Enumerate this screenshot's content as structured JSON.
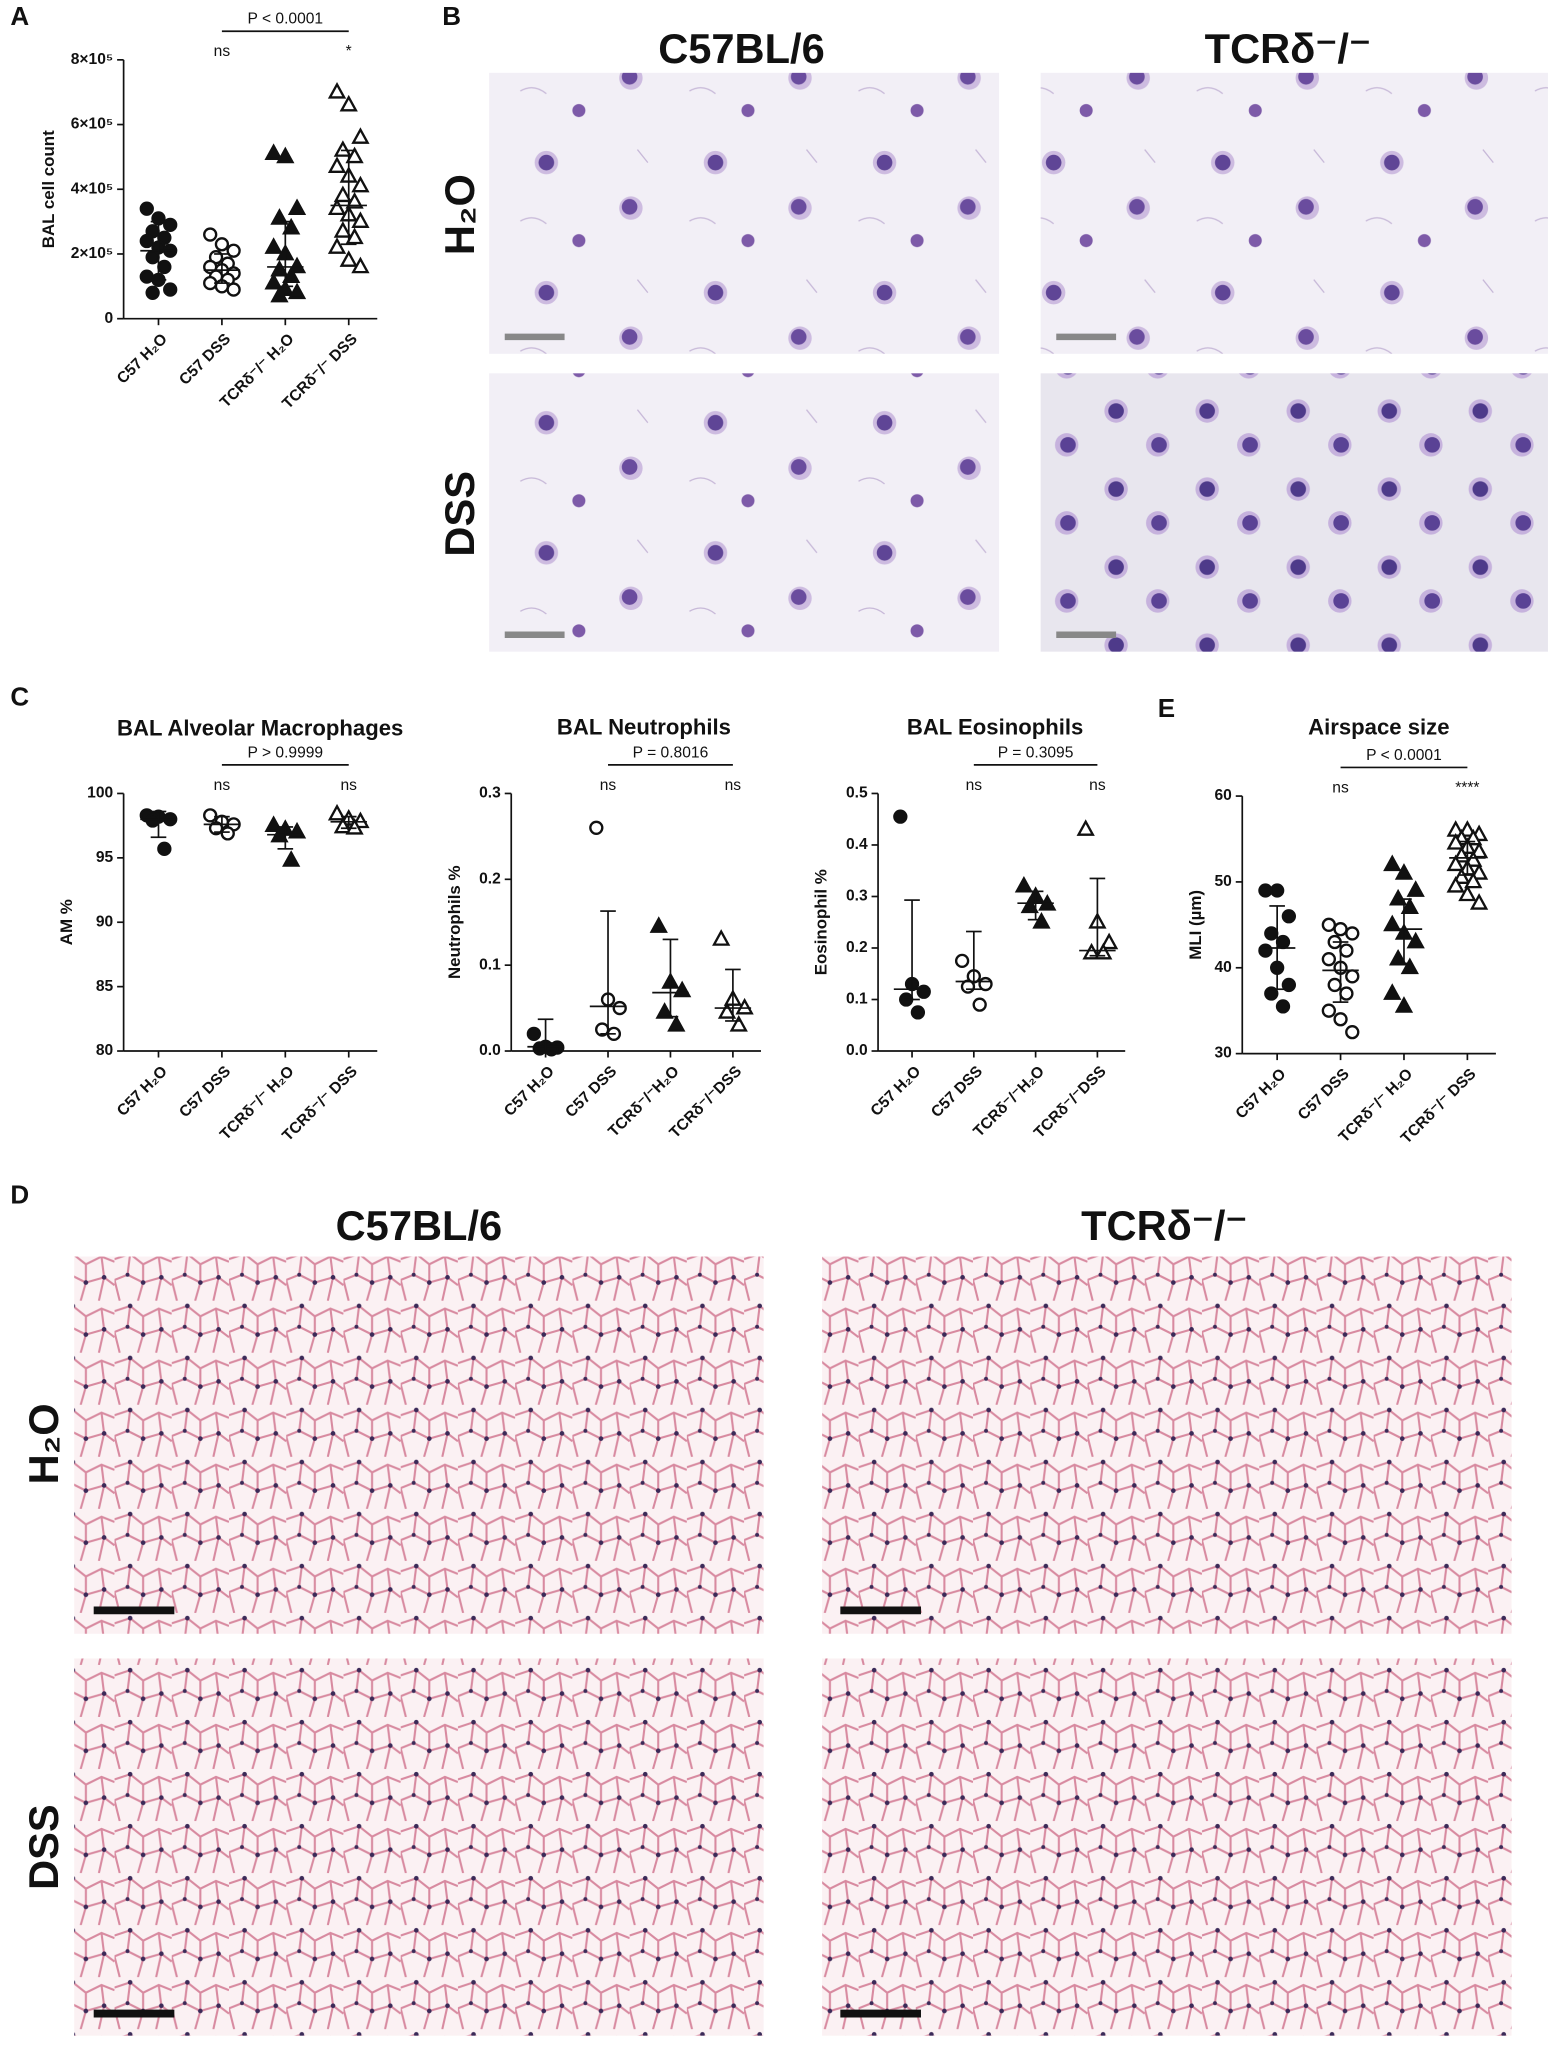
{
  "figure": {
    "panel_labels": [
      "A",
      "B",
      "C",
      "D",
      "E"
    ],
    "micrograph_panels": [
      {
        "columns": [
          "C57BL/6",
          "TCRδ⁻/⁻"
        ],
        "rows": [
          "H₂O",
          "DSS"
        ]
      },
      {
        "columns": [
          "C57BL/6",
          "TCRδ⁻/⁻"
        ],
        "rows": [
          "H₂O",
          "DSS"
        ]
      }
    ]
  },
  "chart_data": [
    {
      "type": "dot",
      "ylabel": "BAL cell count",
      "categories": [
        "C57 H₂O",
        "C57 DSS",
        "TCRδ⁻/⁻ H₂O",
        "TCRδ⁻/⁻ DSS"
      ],
      "points": [
        [
          340000,
          310000,
          290000,
          270000,
          250000,
          240000,
          220000,
          210000,
          190000,
          160000,
          130000,
          120000,
          90000,
          80000
        ],
        [
          260000,
          230000,
          210000,
          190000,
          170000,
          160000,
          150000,
          140000,
          130000,
          120000,
          110000,
          100000,
          90000
        ],
        [
          510000,
          500000,
          340000,
          310000,
          280000,
          220000,
          200000,
          160000,
          150000,
          130000,
          110000,
          90000,
          80000,
          70000
        ],
        [
          700000,
          660000,
          560000,
          520000,
          500000,
          470000,
          440000,
          410000,
          380000,
          360000,
          340000,
          320000,
          300000,
          270000,
          250000,
          220000,
          180000,
          160000
        ]
      ],
      "medians": [
        210000,
        150000,
        160000,
        350000
      ],
      "ranges": [
        [
          120000,
          300000
        ],
        [
          110000,
          200000
        ],
        [
          100000,
          300000
        ],
        [
          230000,
          520000
        ]
      ],
      "ylim": [
        0,
        800000
      ],
      "yticks": [
        0,
        {
          "value": 200000,
          "label": "2×10⁵"
        },
        {
          "value": 400000,
          "label": "4×10⁵"
        },
        {
          "value": 600000,
          "label": "6×10⁵"
        },
        {
          "value": 800000,
          "label": "8×10⁵"
        }
      ],
      "annotations": [
        null,
        "ns",
        null,
        "*"
      ],
      "comparison": "P < 0.0001"
    },
    {
      "type": "dot",
      "title": "BAL Alveolar Macrophages",
      "ylabel": "AM %",
      "categories": [
        "C57 H₂O",
        "C57 DSS",
        "TCRδ⁻/⁻ H₂O",
        "TCRδ⁻/⁻ DSS"
      ],
      "points": [
        [
          98.3,
          98.2,
          98.0,
          97.9,
          95.7
        ],
        [
          98.3,
          97.8,
          97.6,
          97.3,
          96.9
        ],
        [
          97.5,
          97.2,
          97.0,
          96.7,
          94.8
        ],
        [
          98.4,
          98.0,
          97.8,
          97.4,
          97.3
        ]
      ],
      "medians": [
        98.0,
        97.6,
        96.8,
        97.8
      ],
      "ranges": [
        [
          96.6,
          98.6
        ],
        [
          97.0,
          98.2
        ],
        [
          95.7,
          97.4
        ],
        [
          97.3,
          98.2
        ]
      ],
      "ylim": [
        80,
        100
      ],
      "yticks": [
        80,
        85,
        90,
        95,
        100
      ],
      "annotations": [
        null,
        "ns",
        null,
        "ns"
      ],
      "comparison": "P > 0.9999"
    },
    {
      "type": "dot",
      "title": "BAL Neutrophils",
      "ylabel": "Neutrophils %",
      "categories": [
        "C57 H₂O",
        "C57 DSS",
        "TCRδ⁻/⁻H₂O",
        "TCRδ⁻/⁻DSS"
      ],
      "points": [
        [
          0.02,
          0.005,
          0.004,
          0.003,
          0.002
        ],
        [
          0.26,
          0.06,
          0.05,
          0.025,
          0.02
        ],
        [
          0.145,
          0.08,
          0.07,
          0.045,
          0.03
        ],
        [
          0.13,
          0.06,
          0.05,
          0.045,
          0.03
        ]
      ],
      "medians": [
        0.005,
        0.052,
        0.068,
        0.05
      ],
      "ranges": [
        [
          0,
          0.037
        ],
        [
          0.02,
          0.163
        ],
        [
          0.04,
          0.13
        ],
        [
          0.035,
          0.095
        ]
      ],
      "ylim": [
        0,
        0.3
      ],
      "yticks": [
        {
          "value": 0,
          "label": "0.0"
        },
        0.1,
        0.2,
        0.3
      ],
      "annotations": [
        null,
        "ns",
        null,
        "ns"
      ],
      "comparison": "P = 0.8016"
    },
    {
      "type": "dot",
      "title": "BAL Eosinophils",
      "ylabel": "Eosinophil %",
      "categories": [
        "C57 H₂O",
        "C57 DSS",
        "TCRδ⁻/⁻H₂O",
        "TCRδ⁻/⁻DSS"
      ],
      "points": [
        [
          0.455,
          0.13,
          0.115,
          0.1,
          0.075
        ],
        [
          0.175,
          0.145,
          0.13,
          0.125,
          0.09
        ],
        [
          0.32,
          0.3,
          0.285,
          0.28,
          0.25
        ],
        [
          0.43,
          0.25,
          0.21,
          0.19,
          0.19
        ]
      ],
      "medians": [
        0.12,
        0.135,
        0.287,
        0.195
      ],
      "ranges": [
        [
          0.1,
          0.293
        ],
        [
          0.12,
          0.232
        ],
        [
          0.255,
          0.31
        ],
        [
          0.185,
          0.335
        ]
      ],
      "ylim": [
        0,
        0.5
      ],
      "yticks": [
        {
          "value": 0,
          "label": "0.0"
        },
        0.1,
        0.2,
        0.3,
        0.4,
        0.5
      ],
      "annotations": [
        null,
        "ns",
        null,
        "ns"
      ],
      "comparison": "P = 0.3095"
    },
    {
      "type": "dot",
      "title": "Airspace size",
      "ylabel": "MLI (µm)",
      "categories": [
        "C57 H₂O",
        "C57 DSS",
        "TCRδ⁻/⁻ H₂O",
        "TCRδ⁻/⁻ DSS"
      ],
      "points": [
        [
          49,
          49,
          46,
          44,
          43,
          42,
          40,
          38,
          37,
          35.5
        ],
        [
          45,
          44.5,
          44,
          43,
          42,
          41,
          40,
          39,
          38,
          37,
          35,
          34,
          32.5
        ],
        [
          52,
          51,
          49,
          48,
          47,
          45,
          44,
          43,
          41,
          40,
          37,
          35.5
        ],
        [
          56,
          56,
          55.5,
          55,
          55,
          54.5,
          54,
          53.5,
          53,
          52.5,
          52,
          51.5,
          51,
          50.5,
          50,
          49.5,
          48.5,
          47.5
        ]
      ],
      "medians": [
        42.3,
        39.7,
        44.5,
        52.8
      ],
      "ranges": [
        [
          37.5,
          47.2
        ],
        [
          36,
          43
        ],
        [
          40.5,
          48
        ],
        [
          50.8,
          54.7
        ]
      ],
      "ylim": [
        30,
        60
      ],
      "yticks": [
        30,
        40,
        50,
        60
      ],
      "annotations": [
        null,
        "ns",
        null,
        "****"
      ],
      "comparison": "P < 0.0001"
    }
  ]
}
